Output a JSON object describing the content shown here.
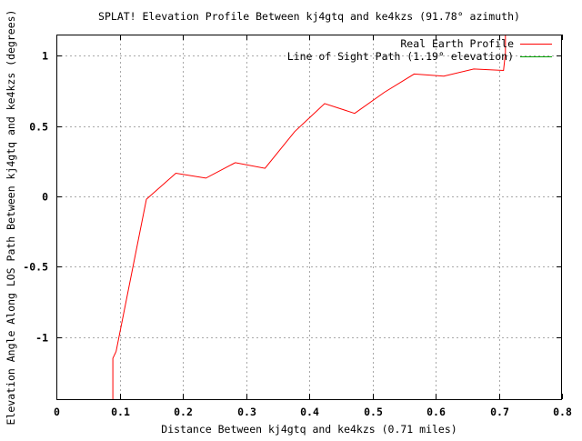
{
  "chart_data": {
    "type": "line",
    "title": "SPLAT! Elevation Profile Between kj4gtq and ke4kzs (91.78° azimuth)",
    "xlabel": "Distance Between kj4gtq and ke4kzs (0.71 miles)",
    "ylabel": "Elevation Angle Along LOS Path Between kj4gtq and ke4kzs (degrees)",
    "xlim": [
      0,
      0.8
    ],
    "ylim": [
      -1.44,
      1.15
    ],
    "x_ticks": [
      0,
      0.1,
      0.2,
      0.3,
      0.4,
      0.5,
      0.6,
      0.7,
      0.8
    ],
    "x_tick_labels": [
      "0",
      "0.1",
      "0.2",
      "0.3",
      "0.4",
      "0.5",
      "0.6",
      "0.7",
      "0.8"
    ],
    "y_ticks": [
      -1,
      -0.5,
      0,
      0.5,
      1
    ],
    "y_tick_labels": [
      "-1",
      "-0.5",
      "0",
      "0.5",
      "1"
    ],
    "grid": true,
    "legend_position": "top-right",
    "series": [
      {
        "name": "Real Earth Profile",
        "color": "#ff0000",
        "x": [
          0.0893,
          0.0893,
          0.0945,
          0.1425,
          0.189,
          0.2365,
          0.283,
          0.33,
          0.377,
          0.4245,
          0.472,
          0.519,
          0.566,
          0.613,
          0.6605,
          0.7075,
          0.7105,
          0.7105
        ],
        "y": [
          -1.44,
          -1.15,
          -1.1,
          -0.02,
          0.165,
          0.13,
          0.24,
          0.2,
          0.46,
          0.66,
          0.59,
          0.74,
          0.87,
          0.855,
          0.905,
          0.895,
          1.02,
          1.15
        ]
      },
      {
        "name": "Line of Sight Path (1.19° elevation)",
        "color": "#00a000",
        "x": [],
        "y": []
      }
    ]
  }
}
